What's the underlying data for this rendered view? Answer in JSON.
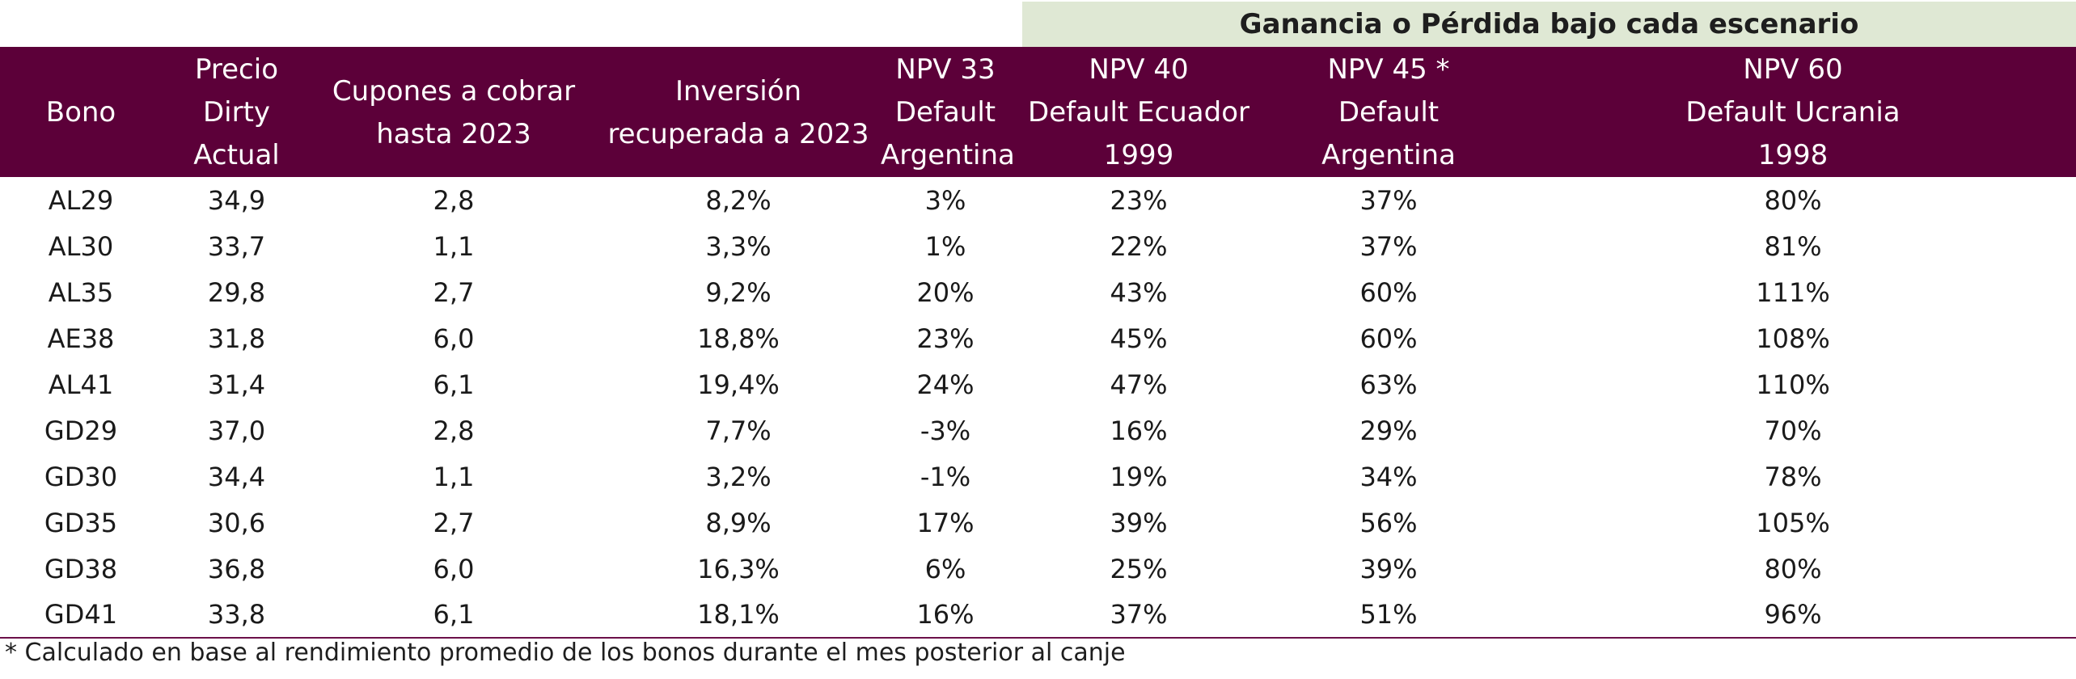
{
  "scenario_header": "Ganancia o Pérdida bajo cada escenario",
  "columns": [
    {
      "lines": [
        "Bono"
      ]
    },
    {
      "lines": [
        "Precio Dirty Actual"
      ]
    },
    {
      "lines": [
        "Cupones a cobrar",
        "hasta 2023"
      ]
    },
    {
      "lines": [
        "Inversión",
        "recuperada a 2023"
      ]
    },
    {
      "lines": [
        "NPV 33",
        "Default",
        "Argentina"
      ]
    },
    {
      "lines": [
        "NPV 40",
        "Default Ecuador",
        "1999"
      ]
    },
    {
      "lines": [
        "NPV 45 *",
        "Default",
        "Argentina"
      ]
    },
    {
      "lines": [
        "NPV 60",
        "Default Ucrania",
        "1998"
      ]
    }
  ],
  "rows": [
    [
      "AL29",
      "34,9",
      "2,8",
      "8,2%",
      "3%",
      "23%",
      "37%",
      "80%"
    ],
    [
      "AL30",
      "33,7",
      "1,1",
      "3,3%",
      "1%",
      "22%",
      "37%",
      "81%"
    ],
    [
      "AL35",
      "29,8",
      "2,7",
      "9,2%",
      "20%",
      "43%",
      "60%",
      "111%"
    ],
    [
      "AE38",
      "31,8",
      "6,0",
      "18,8%",
      "23%",
      "45%",
      "60%",
      "108%"
    ],
    [
      "AL41",
      "31,4",
      "6,1",
      "19,4%",
      "24%",
      "47%",
      "63%",
      "110%"
    ],
    [
      "GD29",
      "37,0",
      "2,8",
      "7,7%",
      "-3%",
      "16%",
      "29%",
      "70%"
    ],
    [
      "GD30",
      "34,4",
      "1,1",
      "3,2%",
      "-1%",
      "19%",
      "34%",
      "78%"
    ],
    [
      "GD35",
      "30,6",
      "2,7",
      "8,9%",
      "17%",
      "39%",
      "56%",
      "105%"
    ],
    [
      "GD38",
      "36,8",
      "6,0",
      "16,3%",
      "6%",
      "25%",
      "39%",
      "80%"
    ],
    [
      "GD41",
      "33,8",
      "6,1",
      "18,1%",
      "16%",
      "37%",
      "51%",
      "96%"
    ]
  ],
  "footnote": "* Calculado en base al rendimiento promedio de los bonos durante el mes posterior al canje"
}
